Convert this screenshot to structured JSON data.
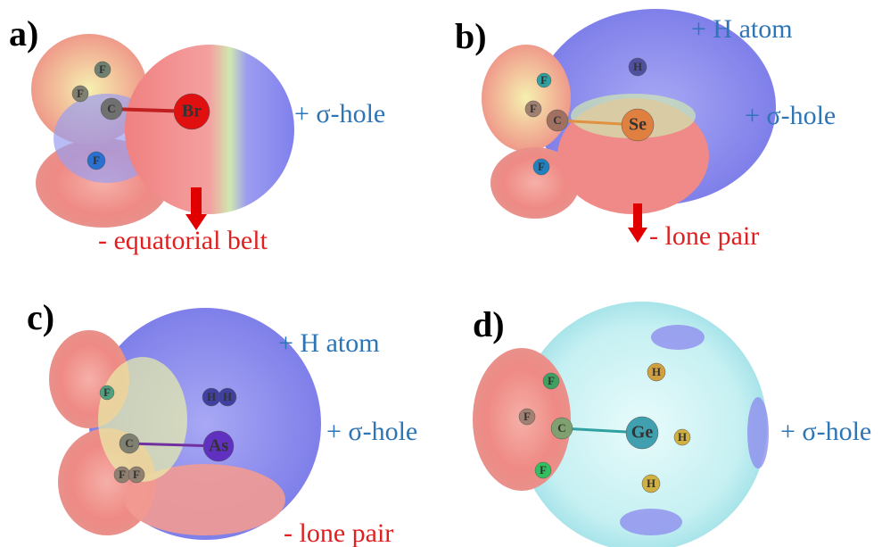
{
  "panels": [
    {
      "label": "a)",
      "atoms": [
        "F",
        "F",
        "C",
        "Br",
        "F"
      ],
      "annotations": [
        "+ σ-hole",
        "- equatorial belt"
      ]
    },
    {
      "label": "b)",
      "atoms": [
        "H",
        "F",
        "F",
        "C",
        "Se",
        "F"
      ],
      "annotations": [
        "+ H atom",
        "+ σ-hole",
        "- lone pair"
      ]
    },
    {
      "label": "c)",
      "atoms": [
        "F",
        "H",
        "H",
        "C",
        "As",
        "F",
        "F"
      ],
      "annotations": [
        "+ H atom",
        "+ σ-hole",
        "- lone pair"
      ]
    },
    {
      "label": "d)",
      "atoms": [
        "H",
        "F",
        "F",
        "C",
        "Ge",
        "H",
        "F",
        "H"
      ],
      "annotations": [
        "+ σ-hole"
      ]
    }
  ]
}
